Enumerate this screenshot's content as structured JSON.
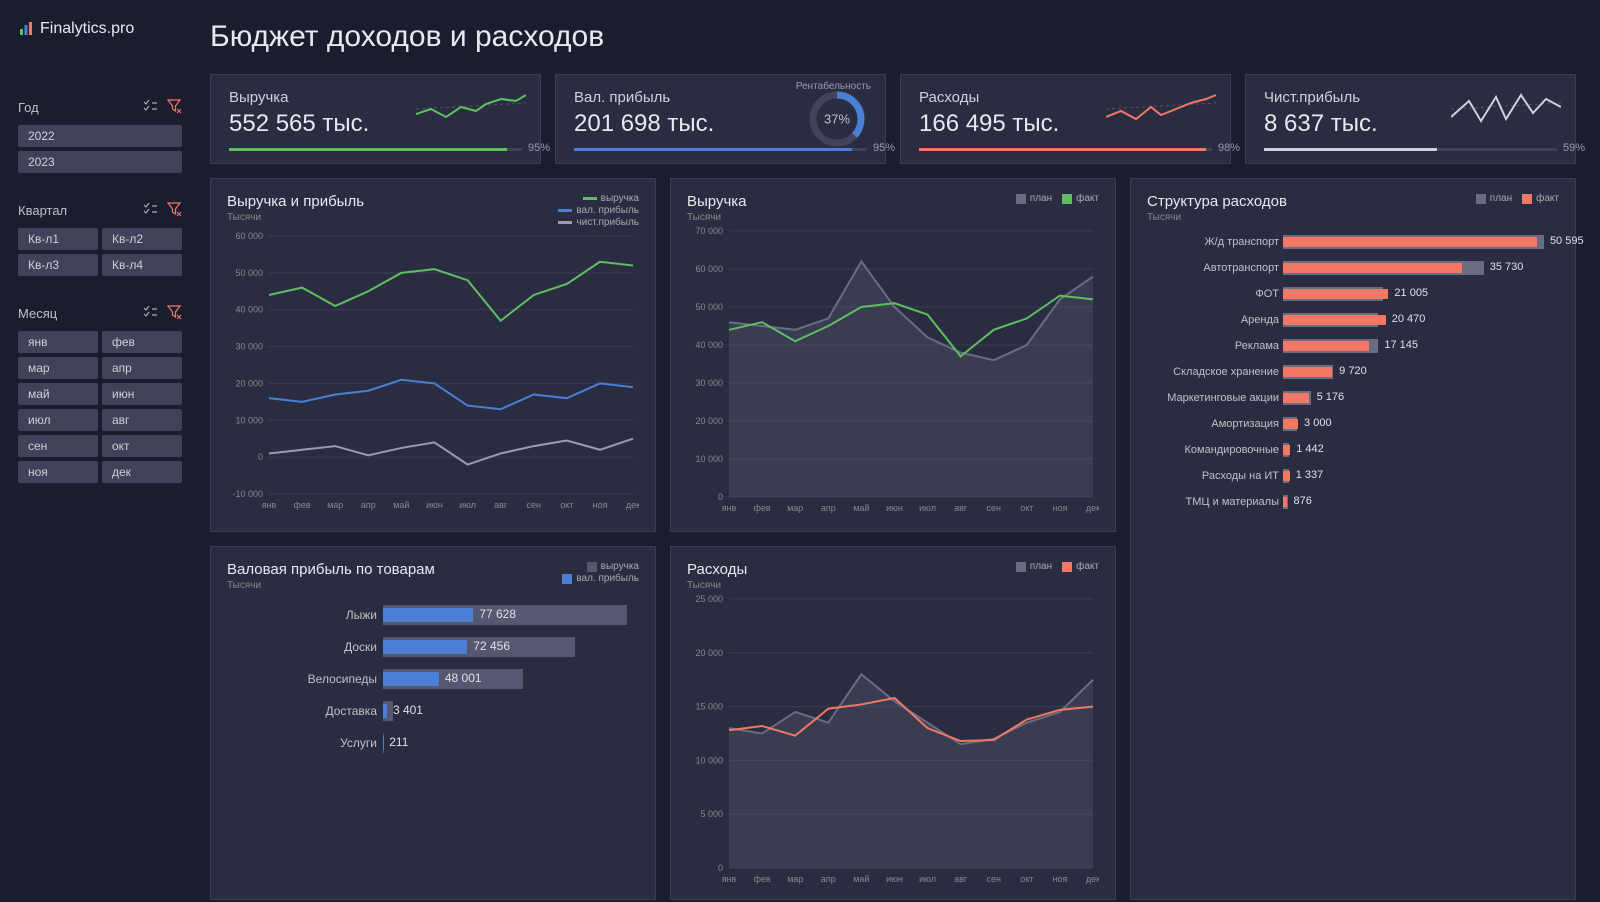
{
  "brand": "Finalytics.pro",
  "page_title": "Бюджет доходов и расходов",
  "colors": {
    "green": "#5fbe5f",
    "blue": "#4a7fd4",
    "red": "#f27863",
    "grey": "#9a9ab0",
    "barGrey": "#6a6d82",
    "darkGrey": "#555870",
    "white": "#d0d0d8"
  },
  "filters": {
    "year": {
      "title": "Год",
      "chips": [
        "2022",
        "2023"
      ]
    },
    "quarter": {
      "title": "Квартал",
      "chips": [
        "Кв-л1",
        "Кв-л2",
        "Кв-л3",
        "Кв-л4"
      ]
    },
    "month": {
      "title": "Месяц",
      "chips": [
        "янв",
        "фев",
        "мар",
        "апр",
        "май",
        "июн",
        "июл",
        "авг",
        "сен",
        "окт",
        "ноя",
        "дек"
      ]
    }
  },
  "kpis": [
    {
      "id": "revenue",
      "label": "Выручка",
      "value": "552 565 тыс.",
      "pct": 95,
      "color": "#5fbe5f"
    },
    {
      "id": "gross",
      "label": "Вал. прибыль",
      "value": "201 698 тыс.",
      "pct": 95,
      "color": "#4a7fd4",
      "caption": "Рентабельность",
      "donut": 37
    },
    {
      "id": "expense",
      "label": "Расходы",
      "value": "166 495 тыс.",
      "pct": 98,
      "color": "#f27863"
    },
    {
      "id": "net",
      "label": "Чист.прибыль",
      "value": "8 637 тыс.",
      "pct": 59,
      "color": "#d0d0d8"
    }
  ],
  "months": [
    "янв",
    "фев",
    "мар",
    "апр",
    "май",
    "июн",
    "июл",
    "авг",
    "сен",
    "окт",
    "ноя",
    "дек"
  ],
  "chart_rev_profit": {
    "title": "Выручка и прибыль",
    "sub": "Тысячи",
    "legend": [
      [
        "выручка",
        "#5fbe5f"
      ],
      [
        "вал. прибыль",
        "#4a7fd4"
      ],
      [
        "чист.прибыль",
        "#9a9ab0"
      ]
    ],
    "ygrid": [
      -10000,
      0,
      10000,
      20000,
      30000,
      40000,
      50000,
      60000
    ],
    "series": {
      "revenue": [
        44000,
        46000,
        41000,
        45000,
        50000,
        51000,
        48000,
        37000,
        44000,
        47000,
        53000,
        52000
      ],
      "gross": [
        16000,
        15000,
        17000,
        18000,
        21000,
        20000,
        14000,
        13000,
        17000,
        16000,
        20000,
        19000
      ],
      "net": [
        1000,
        2000,
        3000,
        500,
        2500,
        4000,
        -2000,
        1000,
        3000,
        4500,
        2000,
        5000
      ]
    }
  },
  "chart_revenue": {
    "title": "Выручка",
    "sub": "Тысячи",
    "legend": [
      [
        "план",
        "#6a6d82"
      ],
      [
        "факт",
        "#5fbe5f"
      ]
    ],
    "ygrid": [
      0,
      10000,
      20000,
      30000,
      40000,
      50000,
      60000,
      70000
    ],
    "plan": [
      46000,
      45000,
      44000,
      47000,
      62000,
      50000,
      42000,
      38000,
      36000,
      40000,
      52000,
      58000
    ],
    "fact": [
      44000,
      46000,
      41000,
      45000,
      50000,
      51000,
      48000,
      37000,
      44000,
      47000,
      53000,
      52000
    ]
  },
  "chart_gross_by_product": {
    "title": "Валовая прибыль по товарам",
    "sub": "Тысячи",
    "legend": [
      [
        "выручка",
        "#555870"
      ],
      [
        "вал. прибыль",
        "#4a7fd4"
      ]
    ],
    "max": 220000,
    "rows": [
      {
        "name": "Лыжи",
        "bg": 210000,
        "fg": 77628,
        "val": "77 628"
      },
      {
        "name": "Доски",
        "bg": 165000,
        "fg": 72456,
        "val": "72 456"
      },
      {
        "name": "Велосипеды",
        "bg": 120000,
        "fg": 48001,
        "val": "48 001"
      },
      {
        "name": "Доставка",
        "bg": 9000,
        "fg": 3401,
        "val": "3 401"
      },
      {
        "name": "Услуги",
        "bg": 1200,
        "fg": 211,
        "val": "211"
      }
    ]
  },
  "chart_expenses": {
    "title": "Расходы",
    "sub": "Тысячи",
    "legend": [
      [
        "план",
        "#6a6d82"
      ],
      [
        "факт",
        "#f27863"
      ]
    ],
    "ygrid": [
      0,
      5000,
      10000,
      15000,
      20000,
      25000
    ],
    "plan": [
      13000,
      12500,
      14500,
      13500,
      18000,
      15500,
      13500,
      11500,
      12000,
      13500,
      14500,
      17500
    ],
    "fact": [
      12800,
      13200,
      12300,
      14800,
      15200,
      15800,
      13000,
      11800,
      11900,
      13800,
      14700,
      15000
    ]
  },
  "chart_expense_struct": {
    "title": "Структура расходов",
    "sub": "Тысячи",
    "legend": [
      [
        "план",
        "#6a6d82"
      ],
      [
        "факт",
        "#f27863"
      ]
    ],
    "max": 55000,
    "rows": [
      {
        "name": "Ж/д транспорт",
        "bg": 52000,
        "fg": 50595,
        "val": "50 595"
      },
      {
        "name": "Автотранспорт",
        "bg": 40000,
        "fg": 35730,
        "val": "35 730"
      },
      {
        "name": "ФОТ",
        "bg": 20000,
        "fg": 21005,
        "val": "21 005"
      },
      {
        "name": "Аренда",
        "bg": 19000,
        "fg": 20470,
        "val": "20 470"
      },
      {
        "name": "Реклама",
        "bg": 19000,
        "fg": 17145,
        "val": "17 145"
      },
      {
        "name": "Складское хранение",
        "bg": 10000,
        "fg": 9720,
        "val": "9 720"
      },
      {
        "name": "Маркетинговые акции",
        "bg": 5500,
        "fg": 5176,
        "val": "5 176"
      },
      {
        "name": "Амортизация",
        "bg": 2800,
        "fg": 3000,
        "val": "3 000"
      },
      {
        "name": "Командировочные",
        "bg": 1100,
        "fg": 1442,
        "val": "1 442"
      },
      {
        "name": "Расходы на ИТ",
        "bg": 1200,
        "fg": 1337,
        "val": "1 337"
      },
      {
        "name": "ТМЦ и материалы",
        "bg": 900,
        "fg": 876,
        "val": "876"
      }
    ]
  }
}
